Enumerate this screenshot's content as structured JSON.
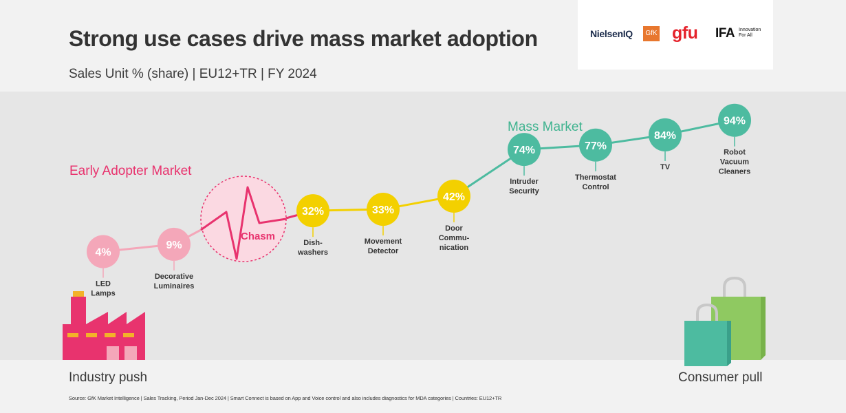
{
  "header": {
    "title": "Strong use cases drive mass market adoption",
    "subtitle": "Sales Unit % (share) | EU12+TR | FY 2024"
  },
  "logos": {
    "nielseniq": "NielsenIQ",
    "gfk": "GfK",
    "gfu": "gfu",
    "ifa": "IFA",
    "ifa_tagline": [
      "Innovation",
      "For All"
    ]
  },
  "colors": {
    "early_adopter": "#e8336e",
    "early_marker": "#f4a7b9",
    "chasm_fill": "#fbd9e2",
    "chasm_stroke": "#e8336e",
    "adoption": "#f3d000",
    "mass_market": "#4dbba0",
    "mass_market_label": "#3fb38f",
    "bag_front": "#4dbba0",
    "bag_back": "#8fc961"
  },
  "chart_data": {
    "type": "line",
    "title": "Strong use cases drive mass market adoption",
    "subtitle": "Sales Unit % (share) | EU12+TR | FY 2024",
    "y_unit": "%",
    "segment_labels": {
      "early": "Early Adopter Market",
      "chasm": "Chasm",
      "mass": "Mass Market"
    },
    "points": [
      {
        "category": "LED Lamps",
        "label_lines": [
          "LED",
          "Lamps"
        ],
        "value": 4,
        "segment": "early"
      },
      {
        "category": "Decorative Luminaires",
        "label_lines": [
          "Decorative",
          "Luminaires"
        ],
        "value": 9,
        "segment": "early"
      },
      {
        "category": "Dishwashers",
        "label_lines": [
          "Dish-",
          "washers"
        ],
        "value": 32,
        "segment": "adoption"
      },
      {
        "category": "Movement Detector",
        "label_lines": [
          "Movement",
          "Detector"
        ],
        "value": 33,
        "segment": "adoption"
      },
      {
        "category": "Door Communication",
        "label_lines": [
          "Door",
          "Commu-",
          "nication"
        ],
        "value": 42,
        "segment": "adoption"
      },
      {
        "category": "Intruder Security",
        "label_lines": [
          "Intruder",
          "Security"
        ],
        "value": 74,
        "segment": "mass"
      },
      {
        "category": "Thermostat Control",
        "label_lines": [
          "Thermostat",
          "Control"
        ],
        "value": 77,
        "segment": "mass"
      },
      {
        "category": "TV",
        "label_lines": [
          "TV"
        ],
        "value": 84,
        "segment": "mass"
      },
      {
        "category": "Robot Vacuum Cleaners",
        "label_lines": [
          "Robot",
          "Vacuum",
          "Cleaners"
        ],
        "value": 94,
        "segment": "mass"
      }
    ]
  },
  "footer": {
    "left": "Industry push",
    "right": "Consumer pull",
    "source": "Source: GfK Market Intelligence | Sales Tracking, Period Jan-Dec 2024 | Smart Connect is based on App and Voice control and also includes diagnostics for MDA categories | Countries: EU12+TR"
  }
}
